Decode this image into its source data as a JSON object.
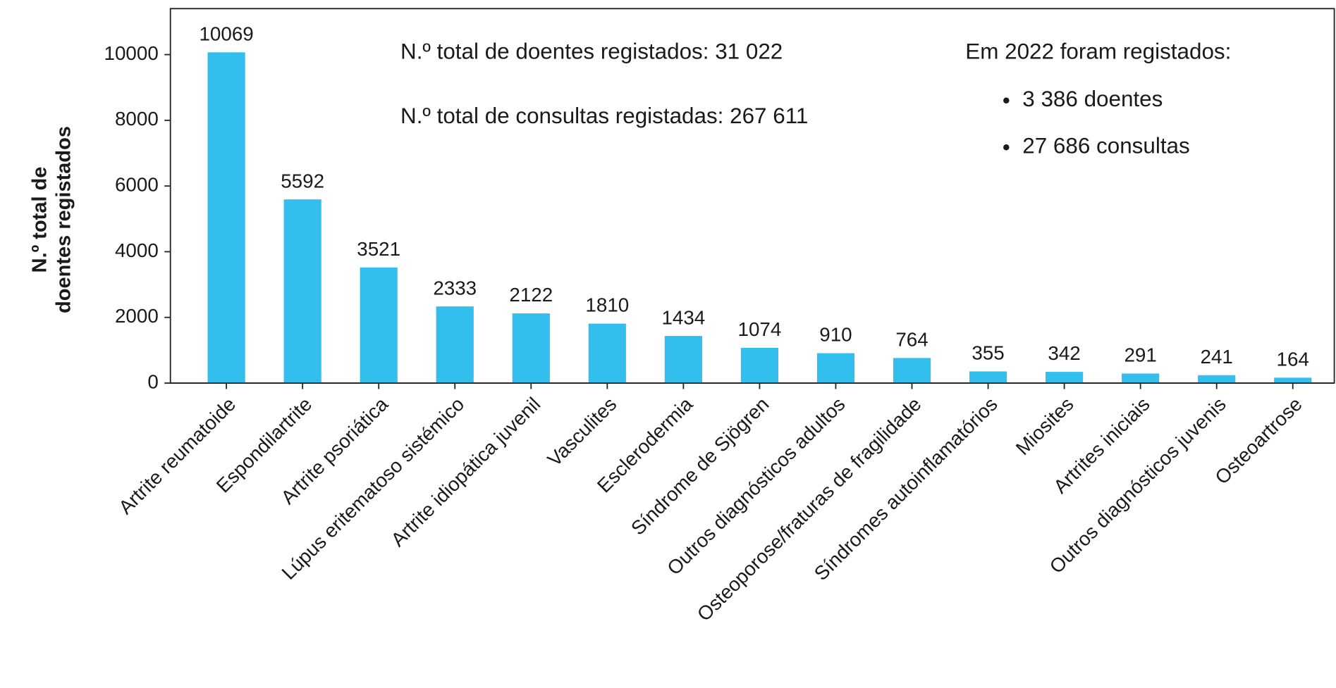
{
  "chart_data": {
    "type": "bar",
    "y_label": [
      "N.º total de",
      "doentes registados"
    ],
    "categories": [
      "Artrite reumatoide",
      "Espondilartrite",
      "Artrite psoriática",
      "Lúpus eritematoso sistémico",
      "Artrite idiopática juvenil",
      "Vasculites",
      "Esclerodermia",
      "Síndrome de Sjögren",
      "Outros diagnósticos adultos",
      "Osteoporose/fraturas de fragilidade",
      "Síndromes autoinflamatórios",
      "Miosites",
      "Artrites iniciais",
      "Outros diagnósticos juvenis",
      "Osteoartrose"
    ],
    "values": [
      10069,
      5592,
      3521,
      2333,
      2122,
      1810,
      1434,
      1074,
      910,
      764,
      355,
      342,
      291,
      241,
      164
    ],
    "color": "#33bfee",
    "ylim": [
      0,
      11400
    ],
    "yticks": [
      0,
      2000,
      4000,
      6000,
      8000,
      10000
    ],
    "annotations": [
      "N.º total de doentes registados: 31 022",
      "N.º total de consultas registadas: 267 611",
      "Em 2022 foram registados:"
    ],
    "bullets": [
      "3 386 doentes",
      "27 686 consultas"
    ]
  }
}
